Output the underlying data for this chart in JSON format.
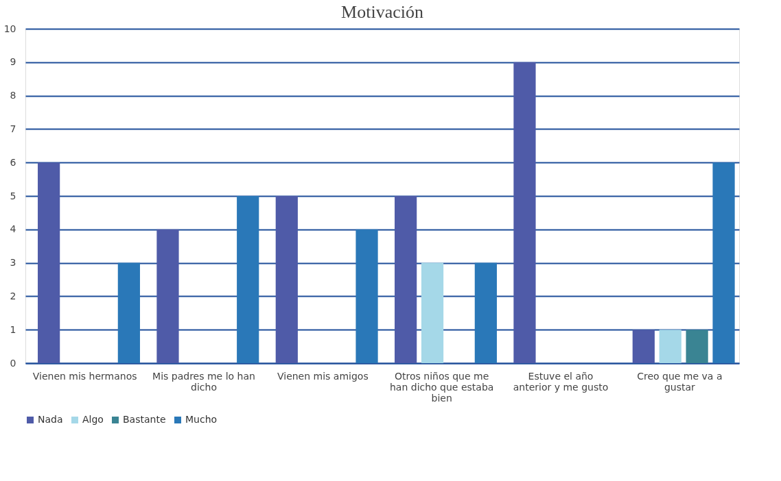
{
  "chart_data": {
    "type": "bar",
    "title": "Motivación",
    "categories": [
      "Vienen mis hermanos",
      "Mis padres me lo han dicho",
      "Vienen mis amigos",
      "Otros niños que me han dicho que estaba bien",
      "Estuve el año anterior y me gusto",
      "Creo que me va a gustar"
    ],
    "series": [
      {
        "name": "Nada",
        "color": "#4f5ba8",
        "values": [
          6,
          4,
          5,
          5,
          9,
          1
        ]
      },
      {
        "name": "Algo",
        "color": "#a5d8e8",
        "values": [
          0,
          0,
          0,
          3,
          0,
          1
        ]
      },
      {
        "name": "Bastante",
        "color": "#3a8493",
        "values": [
          0,
          0,
          0,
          0,
          0,
          1
        ]
      },
      {
        "name": "Mucho",
        "color": "#2a78b8",
        "values": [
          3,
          5,
          4,
          3,
          0,
          6
        ]
      }
    ],
    "ylim": [
      0,
      10
    ],
    "yticks": [
      0,
      1,
      2,
      3,
      4,
      5,
      6,
      7,
      8,
      9,
      10
    ],
    "grid": "y",
    "legend": "bottom"
  }
}
